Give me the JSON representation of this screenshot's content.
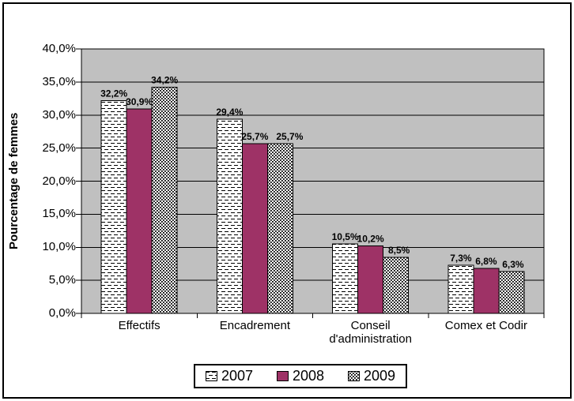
{
  "chart_data": {
    "type": "bar",
    "title": "",
    "xlabel": "",
    "ylabel": "Pourcentage de femmes",
    "categories": [
      "Effectifs",
      "Encadrement",
      "Conseil d'administration",
      "Comex et Codir"
    ],
    "series": [
      {
        "name": "2007",
        "fill": "dash",
        "color": "#ffffff",
        "values": [
          32.2,
          29.4,
          10.5,
          7.3
        ],
        "labels": [
          "32,2%",
          "29,4%",
          "10,5%",
          "7,3%"
        ]
      },
      {
        "name": "2008",
        "fill": "solid",
        "color": "#9e3266",
        "values": [
          30.9,
          25.7,
          10.2,
          6.8
        ],
        "labels": [
          "30,9%",
          "25,7%",
          "10,2%",
          "6,8%"
        ]
      },
      {
        "name": "2009",
        "fill": "dots",
        "color": "#ffffff",
        "values": [
          34.2,
          25.7,
          8.5,
          6.3
        ],
        "labels": [
          "34,2%",
          "25,7%",
          "8,5%",
          "6,3%"
        ]
      }
    ],
    "ylim": [
      0,
      40
    ],
    "ytick_step": 5,
    "ytick_labels": [
      "0,0%",
      "5,0%",
      "10,0%",
      "15,0%",
      "20,0%",
      "25,0%",
      "30,0%",
      "35,0%",
      "40,0%"
    ],
    "grid": true,
    "legend_position": "bottom",
    "plot_bg": "#c0c0c0",
    "grid_color": "#000000",
    "bar_border": "#000000",
    "label_dx": [
      [
        0,
        0,
        0,
        0
      ],
      [
        0,
        0,
        0,
        0
      ],
      [
        0,
        12,
        4,
        2
      ]
    ]
  }
}
